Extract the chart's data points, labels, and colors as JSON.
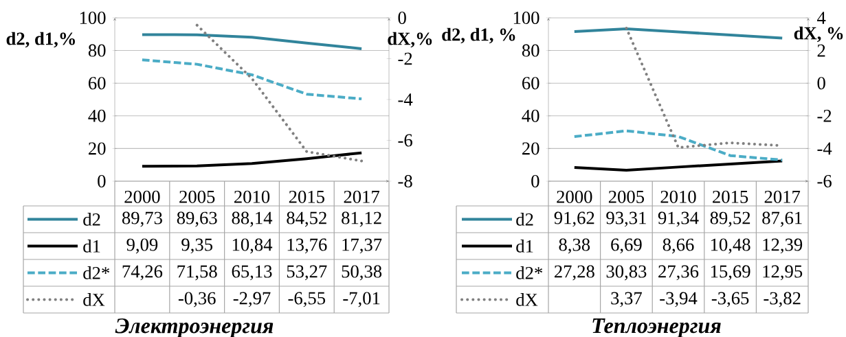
{
  "chart_data": [
    {
      "type": "line",
      "title": "Электроэнергия",
      "ylabel": "d2, d1,%",
      "y2label": "dX,%",
      "categories": [
        "2000",
        "2005",
        "2010",
        "2015",
        "2017"
      ],
      "ylim": [
        0,
        100
      ],
      "yticks": [
        0,
        20,
        40,
        60,
        80,
        100
      ],
      "y2lim": [
        -8,
        0
      ],
      "y2ticks": [
        -8,
        -6,
        -4,
        -2,
        0
      ],
      "grid": "y",
      "legend": "bottom",
      "series": [
        {
          "name": "d2",
          "color": "#31849b",
          "line_style": "solid",
          "values": [
            89.73,
            89.63,
            88.14,
            84.52,
            81.12
          ],
          "value_labels": [
            "89,73",
            "89,63",
            "88,14",
            "84,52",
            "81,12"
          ]
        },
        {
          "name": "d1",
          "color": "#000000",
          "line_style": "solid",
          "values": [
            9.09,
            9.35,
            10.84,
            13.76,
            17.37
          ],
          "value_labels": [
            "9,09",
            "9,35",
            "10,84",
            "13,76",
            "17,37"
          ]
        },
        {
          "name": "d2*",
          "color": "#4bacc6",
          "line_style": "dashed",
          "values": [
            74.26,
            71.58,
            65.13,
            53.27,
            50.38
          ],
          "value_labels": [
            "74,26",
            "71,58",
            "65,13",
            "53,27",
            "50,38"
          ]
        },
        {
          "name": "dX",
          "color": "#808080",
          "line_style": "dotted",
          "axis": "y2",
          "values": [
            null,
            -0.36,
            -2.97,
            -6.55,
            -7.01
          ],
          "value_labels": [
            null,
            "-0,36",
            "-2,97",
            "-6,55",
            "-7,01"
          ]
        }
      ]
    },
    {
      "type": "line",
      "title": "Теплоэнергия",
      "ylabel": "d2, d1, %",
      "y2label": "dX, %",
      "categories": [
        "2000",
        "2005",
        "2010",
        "2015",
        "2017"
      ],
      "ylim": [
        0,
        100
      ],
      "yticks": [
        0,
        20,
        40,
        60,
        80,
        100
      ],
      "y2lim": [
        -6,
        4
      ],
      "y2ticks": [
        -6,
        -4,
        -2,
        0,
        2,
        4
      ],
      "grid": "y",
      "legend": "bottom",
      "series": [
        {
          "name": "d2",
          "color": "#31849b",
          "line_style": "solid",
          "values": [
            91.62,
            93.31,
            91.34,
            89.52,
            87.61
          ],
          "value_labels": [
            "91,62",
            "93,31",
            "91,34",
            "89,52",
            "87,61"
          ]
        },
        {
          "name": "d1",
          "color": "#000000",
          "line_style": "solid",
          "values": [
            8.38,
            6.69,
            8.66,
            10.48,
            12.39
          ],
          "value_labels": [
            "8,38",
            "6,69",
            "8,66",
            "10,48",
            "12,39"
          ]
        },
        {
          "name": "d2*",
          "color": "#4bacc6",
          "line_style": "dashed",
          "values": [
            27.28,
            30.83,
            27.36,
            15.69,
            12.95
          ],
          "value_labels": [
            "27,28",
            "30,83",
            "27,36",
            "15,69",
            "12,95"
          ]
        },
        {
          "name": "dX",
          "color": "#808080",
          "line_style": "dotted",
          "axis": "y2",
          "values": [
            null,
            3.37,
            -3.94,
            -3.65,
            -3.82
          ],
          "value_labels": [
            null,
            "3,37",
            "-3,94",
            "-3,65",
            "-3,82"
          ]
        }
      ]
    }
  ]
}
